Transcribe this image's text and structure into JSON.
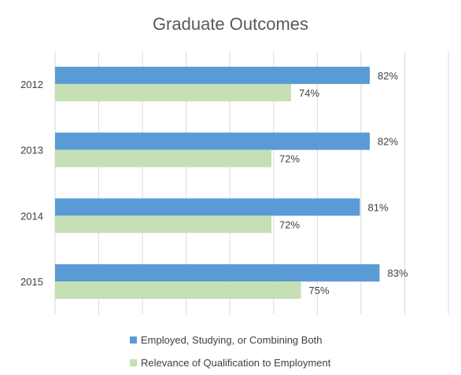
{
  "chart_data": {
    "type": "bar",
    "orientation": "horizontal",
    "title": "Graduate Outcomes",
    "categories": [
      "2012",
      "2013",
      "2014",
      "2015"
    ],
    "series": [
      {
        "name": "Employed, Studying, or Combining Both",
        "values": [
          82,
          82,
          81,
          83
        ],
        "labels": [
          "82%",
          "82%",
          "81%",
          "83%"
        ],
        "color": "#5b9bd5"
      },
      {
        "name": "Relevance of Qualification to Employment",
        "values": [
          74,
          72,
          72,
          75
        ],
        "labels": [
          "74%",
          "72%",
          "72%",
          "75%"
        ],
        "color": "#c5e0b4"
      }
    ],
    "xlim": [
      50,
      90
    ],
    "grid": true,
    "legend_position": "bottom"
  }
}
